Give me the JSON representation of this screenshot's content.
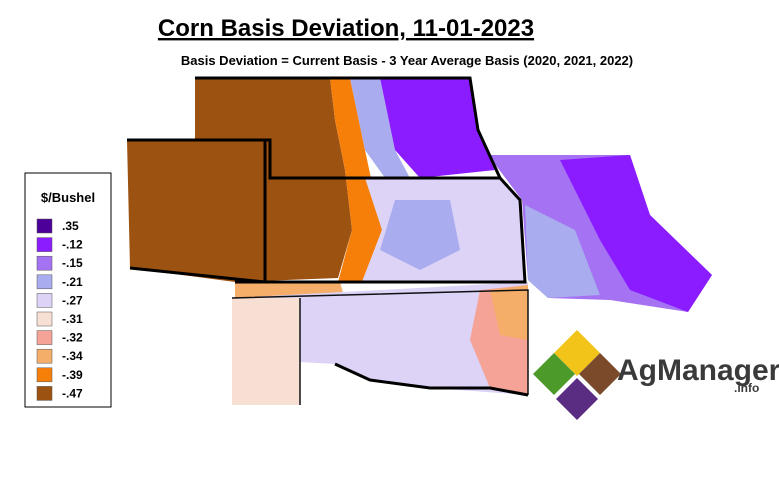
{
  "header": {
    "title": "Corn Basis Deviation, 11-01-2023",
    "subtitle": "Basis Deviation = Current Basis - 3 Year Average Basis (2020, 2021, 2022)"
  },
  "legend": {
    "title": "$/Bushel",
    "items": [
      {
        "label": ".35",
        "color": "#4c0099"
      },
      {
        "label": "-.12",
        "color": "#8a1cff"
      },
      {
        "label": "-.15",
        "color": "#a472f2"
      },
      {
        "label": "-.21",
        "color": "#a9acee"
      },
      {
        "label": "-.27",
        "color": "#dcd3f7"
      },
      {
        "label": "-.31",
        "color": "#f8dfd3"
      },
      {
        "label": "-.32",
        "color": "#f5a397"
      },
      {
        "label": "-.34",
        "color": "#f5ad6a"
      },
      {
        "label": "-.39",
        "color": "#f67f0a"
      },
      {
        "label": "-.47",
        "color": "#9c5211"
      }
    ]
  },
  "logo": {
    "name": "AgManager",
    "suffix": ".info"
  }
}
